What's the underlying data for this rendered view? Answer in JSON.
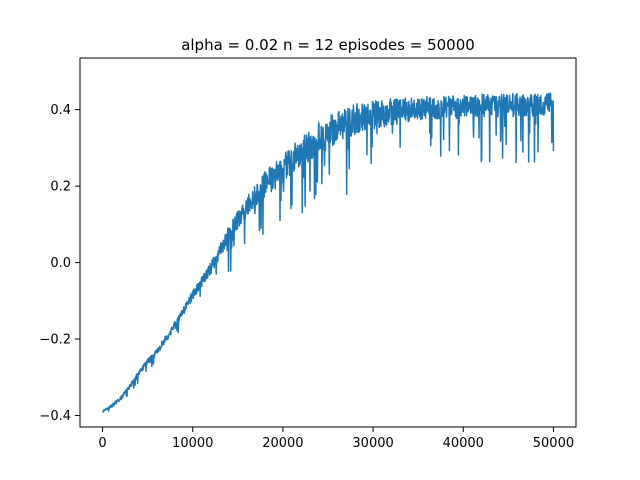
{
  "chart_data": {
    "type": "line",
    "title": "alpha = 0.02 n = 12 episodes = 50000",
    "xlabel": "",
    "ylabel": "",
    "xlim": [
      -2500,
      52500
    ],
    "ylim": [
      -0.43,
      0.535
    ],
    "xticks": [
      0,
      10000,
      20000,
      30000,
      40000,
      50000
    ],
    "xtick_labels": [
      "0",
      "10000",
      "20000",
      "30000",
      "40000",
      "50000"
    ],
    "yticks": [
      -0.4,
      -0.2,
      0.0,
      0.2,
      0.4
    ],
    "ytick_labels": [
      "−0.4",
      "−0.2",
      "0.0",
      "0.2",
      "0.4"
    ],
    "grid": false,
    "legend": "none",
    "series": [
      {
        "color": "#1f77b4",
        "x": [
          0,
          1000,
          2000,
          3000,
          4000,
          5000,
          6000,
          7000,
          8000,
          9000,
          10000,
          11000,
          12000,
          13000,
          14000,
          15000,
          16000,
          17000,
          18000,
          19000,
          20000,
          21000,
          22000,
          23000,
          24000,
          25000,
          26000,
          27000,
          28000,
          29000,
          30000,
          31000,
          32000,
          33000,
          34000,
          35000,
          36000,
          37000,
          38000,
          39000,
          40000,
          41000,
          42000,
          43000,
          44000,
          45000,
          46000,
          47000,
          48000,
          49000,
          50000
        ],
        "y": [
          -0.39,
          -0.375,
          -0.355,
          -0.325,
          -0.29,
          -0.26,
          -0.235,
          -0.2,
          -0.165,
          -0.125,
          -0.085,
          -0.05,
          -0.015,
          0.03,
          0.075,
          0.11,
          0.145,
          0.175,
          0.205,
          0.225,
          0.245,
          0.27,
          0.29,
          0.305,
          0.325,
          0.34,
          0.355,
          0.365,
          0.375,
          0.38,
          0.385,
          0.39,
          0.395,
          0.397,
          0.4,
          0.402,
          0.404,
          0.405,
          0.406,
          0.407,
          0.408,
          0.409,
          0.41,
          0.41,
          0.411,
          0.412,
          0.412,
          0.413,
          0.413,
          0.414,
          0.414
        ],
        "noise_amplitude": [
          0.004,
          0.006,
          0.008,
          0.009,
          0.01,
          0.012,
          0.013,
          0.015,
          0.016,
          0.018,
          0.02,
          0.022,
          0.025,
          0.03,
          0.035,
          0.04,
          0.045,
          0.05,
          0.055,
          0.06,
          0.062,
          0.064,
          0.066,
          0.068,
          0.07,
          0.07,
          0.07,
          0.068,
          0.066,
          0.064,
          0.062,
          0.06,
          0.058,
          0.056,
          0.054,
          0.052,
          0.05,
          0.05,
          0.05,
          0.05,
          0.05,
          0.05,
          0.05,
          0.05,
          0.05,
          0.05,
          0.05,
          0.05,
          0.05,
          0.05,
          0.05
        ]
      }
    ]
  }
}
